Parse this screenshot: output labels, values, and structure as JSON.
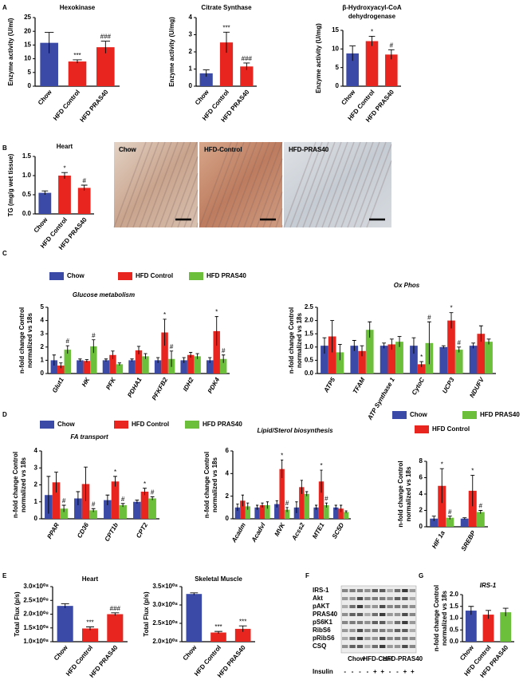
{
  "panel_labels": [
    "A",
    "B",
    "C",
    "D",
    "E",
    "F",
    "G"
  ],
  "micrographs": {
    "labels": [
      "Chow",
      "HFD-Control",
      "HFD-PRAS40"
    ]
  },
  "blot": {
    "rows": [
      "IRS-1",
      "Akt",
      "pAKT",
      "PRAS40",
      "pS6K1",
      "RibS6",
      "pRibS6",
      "CSQ"
    ],
    "groups": [
      "Chow",
      "HFD-Cont",
      "HFD-PRAS40"
    ],
    "treatment_label": "Insulin",
    "treatment": [
      "-",
      "-",
      "-",
      "-",
      "+",
      "+",
      "-",
      "-",
      "+",
      "+"
    ]
  },
  "chart_data": [
    {
      "type": "bar",
      "title": "Hexokinase",
      "ylabel": "Enzyme activity (U/ml)",
      "categories": [
        "Chow",
        "HFD Control",
        "HFD PRAS40"
      ],
      "values": [
        15.8,
        9,
        14.2
      ],
      "errors": [
        3.8,
        0.6,
        2.2
      ],
      "colors": [
        "#3a4aa6",
        "#e8261f",
        "#e8261f"
      ],
      "significance": [
        null,
        "***",
        "###"
      ],
      "ylim": [
        0,
        25
      ],
      "yticks": [
        0,
        5,
        10,
        15,
        20,
        25
      ]
    },
    {
      "type": "bar",
      "title": "Citrate Synthase",
      "ylabel": "Enzyme activity (U/mg)",
      "categories": [
        "Chow",
        "HFD Control",
        "HFD PRAS40"
      ],
      "values": [
        0.75,
        2.55,
        1.15
      ],
      "errors": [
        0.2,
        0.6,
        0.2
      ],
      "colors": [
        "#3a4aa6",
        "#e8261f",
        "#e8261f"
      ],
      "significance": [
        null,
        "***",
        "###"
      ],
      "ylim": [
        0,
        4
      ],
      "yticks": [
        0,
        1,
        2,
        3,
        4
      ]
    },
    {
      "type": "bar",
      "title": [
        "β-Hydroxyacyl-CoA",
        "dehydrogenase"
      ],
      "ylabel": "Enzyme activity (U/mg)",
      "categories": [
        "Chow",
        "HFD Control",
        "HFD PRAS40"
      ],
      "values": [
        8.8,
        12.1,
        8.5
      ],
      "errors": [
        2,
        1.3,
        1.3
      ],
      "colors": [
        "#3a4aa6",
        "#e8261f",
        "#e8261f"
      ],
      "significance": [
        null,
        "*",
        "#"
      ],
      "ylim": [
        0,
        15
      ],
      "yticks": [
        0,
        5,
        10,
        15
      ]
    },
    {
      "type": "bar",
      "title": "Heart",
      "ylabel": "TG (mg/g wet  tissue)",
      "categories": [
        "Chow",
        "HFD Control",
        "HFD PRAS40"
      ],
      "values": [
        0.55,
        1.0,
        0.68
      ],
      "errors": [
        0.05,
        0.08,
        0.07
      ],
      "colors": [
        "#3a4aa6",
        "#e8261f",
        "#e8261f"
      ],
      "significance": [
        null,
        "*",
        "#"
      ],
      "ylim": [
        0,
        1.5
      ],
      "yticks": [
        {
          "value": 0,
          "label": "0.0"
        },
        0.5,
        {
          "value": 1,
          "label": "1.0"
        },
        1.5
      ]
    },
    {
      "type": "bar",
      "subtitle": "Glucose metabolism",
      "ylabel": [
        "n-fold change Control",
        "normalized vs 18s"
      ],
      "categories": [
        "Glut1",
        "HK",
        "PFK",
        "PDHA1",
        "PFKFB2",
        "IDH2",
        "PDK4"
      ],
      "series": [
        {
          "name": "Chow",
          "color": "#3a4aa6",
          "values": [
            1.0,
            1.0,
            1.0,
            1.0,
            1.0,
            1.0,
            1.0
          ],
          "errors": [
            0.4,
            0.1,
            0.1,
            0.1,
            0.2,
            0.2,
            0.2
          ],
          "significance": [
            null,
            null,
            null,
            null,
            null,
            null,
            null
          ]
        },
        {
          "name": "HFD Control",
          "color": "#e8261f",
          "values": [
            0.6,
            0.95,
            1.4,
            1.75,
            3.1,
            1.4,
            3.2
          ],
          "errors": [
            0.2,
            0.1,
            0.3,
            0.3,
            1.0,
            0.2,
            1.1
          ],
          "significance": [
            "*",
            null,
            null,
            null,
            "*",
            null,
            "*"
          ]
        },
        {
          "name": "HFD PRAS40",
          "color": "#6bbf3a",
          "values": [
            1.8,
            2.05,
            0.7,
            1.3,
            1.1,
            1.3,
            1.1
          ],
          "errors": [
            0.3,
            0.5,
            0.1,
            0.2,
            0.6,
            0.2,
            0.3
          ],
          "significance": [
            "#",
            "#",
            null,
            null,
            "#",
            null,
            "#"
          ]
        }
      ],
      "ylim": [
        0,
        5
      ],
      "yticks": [
        0,
        1,
        2,
        3,
        4,
        5
      ]
    },
    {
      "type": "bar",
      "title": "Ox Phos",
      "ylabel": [
        "n-fold change Control",
        "normalized vs 18s"
      ],
      "categories": [
        "ATP5",
        "TFAM",
        "ATP Synthase 1",
        "CytoC",
        "UCP3",
        "NDUFV"
      ],
      "series": [
        {
          "color": "#3a4aa6",
          "values": [
            1.05,
            1.05,
            1.05,
            1.05,
            1.0,
            1.05
          ],
          "errors": [
            0.3,
            0.2,
            0.1,
            0.3,
            0.05,
            0.1
          ],
          "significance": [
            null,
            null,
            null,
            null,
            null,
            null
          ]
        },
        {
          "color": "#e8261f",
          "values": [
            1.4,
            0.85,
            1.1,
            0.35,
            2.0,
            1.5
          ],
          "errors": [
            0.6,
            0.2,
            0.2,
            0.1,
            0.3,
            0.3
          ],
          "significance": [
            null,
            null,
            null,
            "*",
            "*",
            null
          ]
        },
        {
          "color": "#6bbf3a",
          "values": [
            0.8,
            1.65,
            1.2,
            1.15,
            0.9,
            1.2
          ],
          "errors": [
            0.3,
            0.3,
            0.2,
            0.8,
            0.1,
            0.1
          ],
          "significance": [
            null,
            null,
            null,
            "#",
            "#",
            null
          ]
        }
      ],
      "ylim": [
        0,
        2.5
      ],
      "yticks": [
        {
          "value": 0,
          "label": "0.0"
        },
        0.5,
        {
          "value": 1,
          "label": "1.0"
        },
        1.5,
        {
          "value": 2,
          "label": "2.0"
        },
        2.5
      ]
    },
    {
      "type": "bar",
      "subtitle": "FA transport",
      "ylabel": [
        "n-fold change Control",
        "normalized vs 18s"
      ],
      "categories": [
        "PPAR",
        "CD36",
        "CPT1b",
        "CPT2"
      ],
      "series": [
        {
          "name": "Chow",
          "color": "#3a4aa6",
          "values": [
            1.4,
            1.2,
            1.1,
            1.0
          ],
          "errors": [
            1.1,
            0.4,
            0.3,
            0.1
          ],
          "significance": [
            null,
            null,
            null,
            null
          ]
        },
        {
          "name": "HFD Control",
          "color": "#e8261f",
          "values": [
            2.15,
            2.05,
            2.2,
            1.6
          ],
          "errors": [
            0.6,
            1.0,
            0.3,
            0.2
          ],
          "significance": [
            null,
            null,
            "*",
            "*"
          ]
        },
        {
          "name": "HFD PRAS40",
          "color": "#6bbf3a",
          "values": [
            0.6,
            0.5,
            0.8,
            1.2
          ],
          "errors": [
            0.2,
            0.1,
            0.1,
            0.1
          ],
          "significance": [
            "#",
            "#",
            "#",
            "#"
          ]
        }
      ],
      "ylim": [
        0,
        4
      ],
      "yticks": [
        0,
        1,
        2,
        3,
        4
      ]
    },
    {
      "type": "bar",
      "subtitle": "Lipid/Sterol biosynthesis",
      "ylabel": [
        "n-fold change Control",
        "normalized vs 18s"
      ],
      "categories": [
        "Acadm",
        "Acadvl",
        "MVK",
        "Acss2",
        "MTE1",
        "SC5D"
      ],
      "series": [
        {
          "color": "#3a4aa6",
          "values": [
            1.0,
            1.0,
            1.3,
            1.0,
            1.0,
            1.0
          ],
          "errors": [
            0.3,
            0.2,
            0.3,
            0.5,
            0.2,
            0.2
          ],
          "significance": [
            null,
            null,
            null,
            null,
            null,
            null
          ]
        },
        {
          "color": "#e8261f",
          "values": [
            1.6,
            1.2,
            4.4,
            2.8,
            3.3,
            0.9
          ],
          "errors": [
            0.5,
            0.2,
            0.8,
            0.6,
            1.0,
            0.3
          ],
          "significance": [
            null,
            null,
            "*",
            null,
            "*",
            null
          ]
        },
        {
          "color": "#6bbf3a",
          "values": [
            1.1,
            1.2,
            0.8,
            2.2,
            1.2,
            0.6
          ],
          "errors": [
            0.3,
            0.3,
            0.2,
            0.2,
            0.2,
            0.1
          ],
          "significance": [
            null,
            null,
            "#",
            null,
            "#",
            null
          ]
        }
      ],
      "ylim": [
        0,
        6
      ],
      "yticks": [
        0,
        2,
        4,
        6
      ]
    },
    {
      "type": "bar",
      "ylabel": [
        "n-fold change Control",
        "normalized vs 18s"
      ],
      "categories": [
        "HIF 1a",
        "SREBP"
      ],
      "series": [
        {
          "name": "Chow",
          "color": "#3a4aa6",
          "values": [
            1.0,
            1.0
          ],
          "errors": [
            0.3,
            0.1
          ],
          "significance": [
            null,
            null
          ]
        },
        {
          "name": "HFD Control",
          "color": "#e8261f",
          "values": [
            5.0,
            4.4
          ],
          "errors": [
            2.1,
            1.9
          ],
          "significance": [
            "*",
            "*"
          ]
        },
        {
          "name": "HFD PRAS40",
          "color": "#6bbf3a",
          "values": [
            1.1,
            1.8
          ],
          "errors": [
            0.2,
            0.2
          ],
          "significance": [
            "#",
            "#"
          ]
        }
      ],
      "ylim": [
        0,
        8
      ],
      "yticks": [
        0,
        2,
        4,
        6,
        8
      ]
    },
    {
      "type": "bar",
      "title": "Heart",
      "ylabel": "Total Flux (p/s)",
      "categories": [
        "Chow",
        "HFD Control",
        "HFD PRAS40"
      ],
      "values": [
        230000000,
        148000000,
        200000000
      ],
      "errors": [
        8000000,
        6000000,
        5000000
      ],
      "colors": [
        "#3a4aa6",
        "#e8261f",
        "#e8261f"
      ],
      "significance": [
        null,
        "***",
        "###"
      ],
      "ylim": [
        100000000,
        300000000
      ],
      "yticks": [
        {
          "value": 100000000,
          "label": "1.0×10⁰⁸"
        },
        {
          "value": 150000000,
          "label": "1.5×10⁰⁸"
        },
        {
          "value": 200000000,
          "label": "2.0×10⁰⁸"
        },
        {
          "value": 250000000,
          "label": "2.5×10⁰⁸"
        },
        {
          "value": 300000000,
          "label": "3.0×10⁰⁸"
        }
      ]
    },
    {
      "type": "bar",
      "title": "Skeletal Muscle",
      "ylabel": "Total Flux (p/s)",
      "categories": [
        "Chow",
        "HFD Control",
        "HFD PRAS40"
      ],
      "values": [
        330000000,
        225000000,
        235000000
      ],
      "errors": [
        3000000,
        3000000,
        8000000
      ],
      "colors": [
        "#3a4aa6",
        "#e8261f",
        "#e8261f"
      ],
      "significance": [
        null,
        "***",
        "***"
      ],
      "ylim": [
        200000000,
        350000000
      ],
      "yticks": [
        {
          "value": 200000000,
          "label": "2.0×10⁰⁸"
        },
        {
          "value": 250000000,
          "label": "2.5×10⁰⁸"
        },
        {
          "value": 300000000,
          "label": "3.0×10⁰⁸"
        },
        {
          "value": 350000000,
          "label": "3.5×10⁰⁸"
        }
      ]
    },
    {
      "type": "bar",
      "subtitle": "IRS-1",
      "ylabel": [
        "n-fold change Control",
        "normalized vs 18s"
      ],
      "categories": [
        "Chow",
        "HFD Control",
        "HFD PRAS40"
      ],
      "values": [
        1.32,
        1.15,
        1.25
      ],
      "errors": [
        0.18,
        0.18,
        0.17
      ],
      "colors": [
        "#3a4aa6",
        "#e8261f",
        "#6bbf3a"
      ],
      "ylim": [
        0,
        2
      ],
      "yticks": [
        {
          "value": 0,
          "label": "0.0"
        },
        0.5,
        {
          "value": 1,
          "label": "1.0"
        },
        1.5,
        {
          "value": 2,
          "label": "2.0"
        }
      ]
    }
  ]
}
